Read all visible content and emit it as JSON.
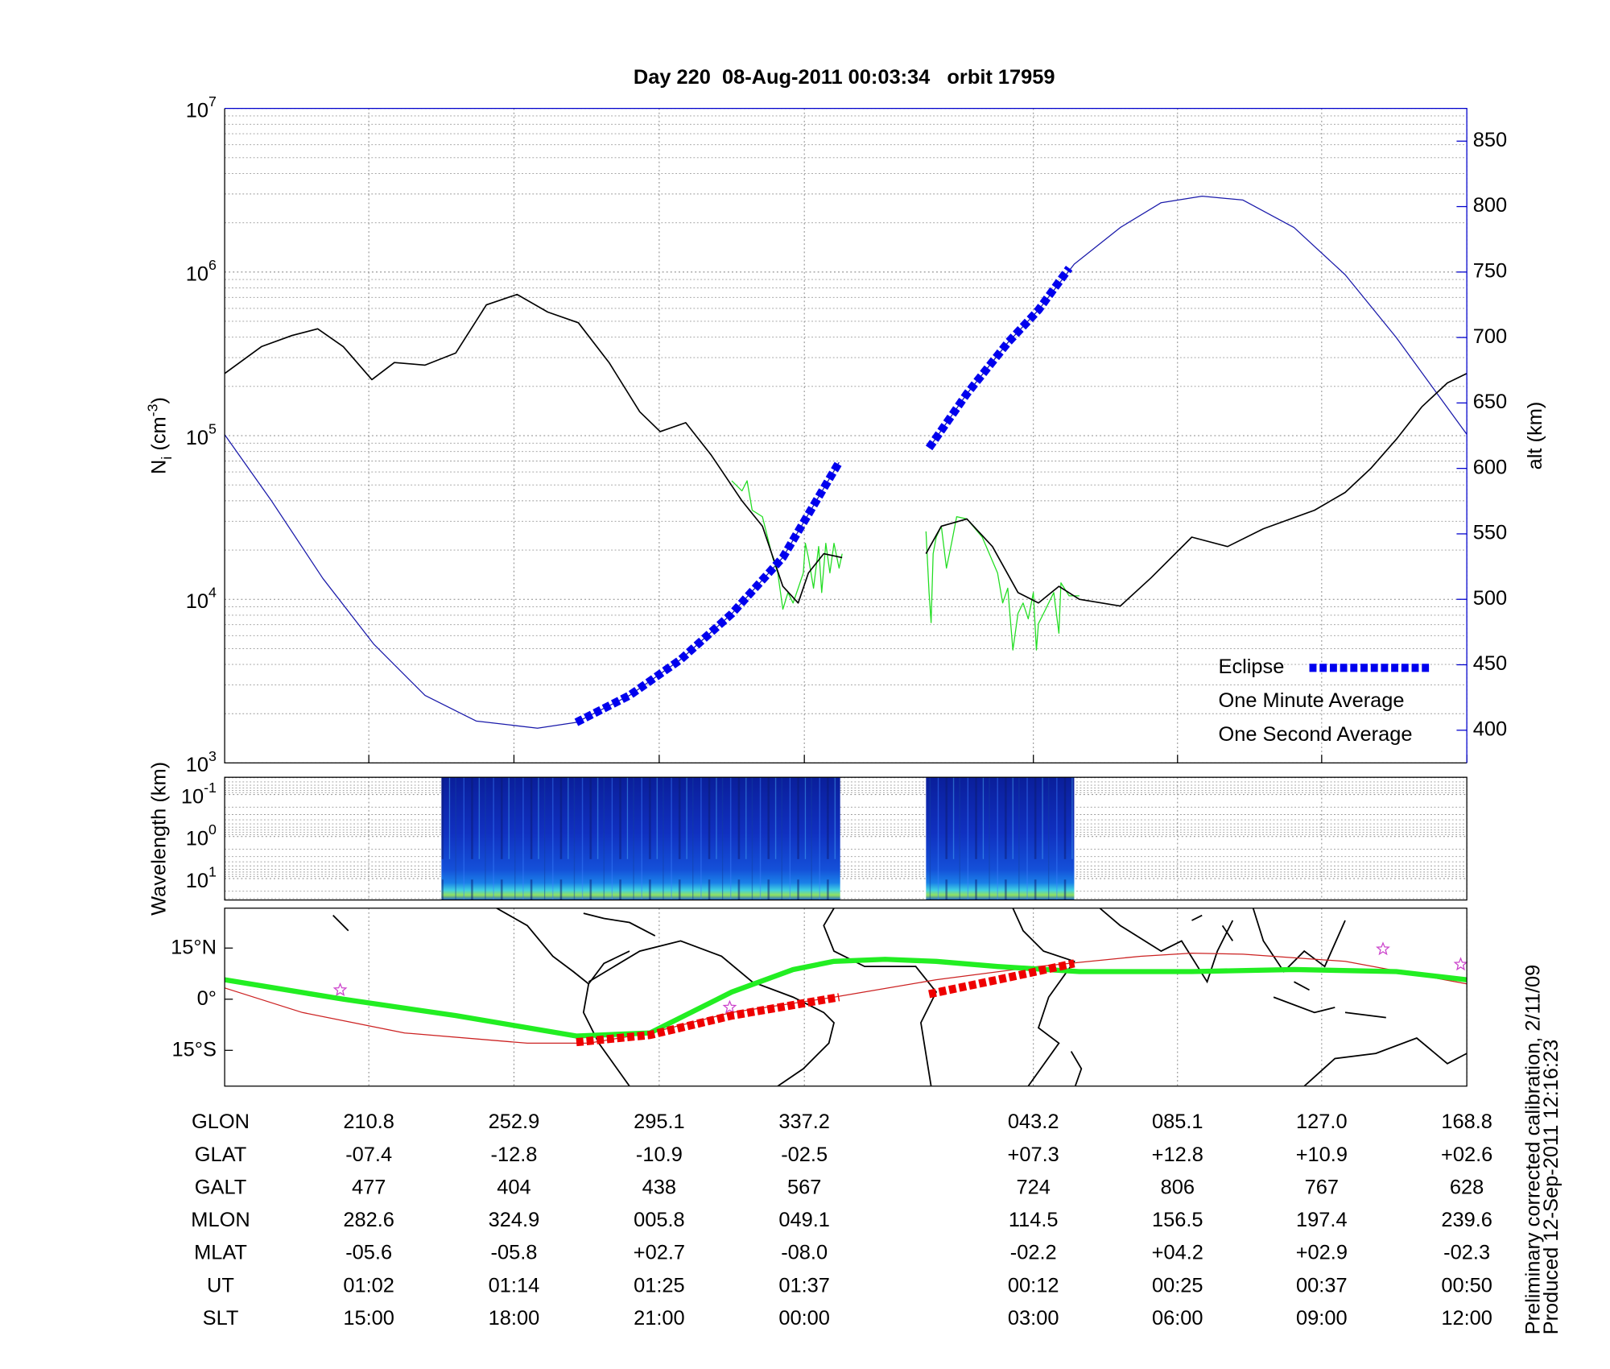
{
  "title": "Day 220  08-Aug-2011 00:03:34   orbit 17959",
  "chart_data": [
    {
      "type": "line",
      "ylabel_parts": [
        {
          "text": "N"
        },
        {
          "text": "i",
          "shift": "sub"
        },
        {
          "text": " (cm"
        },
        {
          "text": "-3",
          "shift": "super"
        },
        {
          "text": ")"
        }
      ],
      "y2label": "alt (km)",
      "y2color": "#0000cc",
      "xlim": [
        0,
        101.25
      ],
      "xticks": [
        11.75,
        23.58,
        35.42,
        47.25,
        65.92,
        77.67,
        89.42,
        101.25
      ],
      "log_y": true,
      "ylim": [
        1000,
        10000000
      ],
      "yticks": [
        {
          "value": 1000,
          "label": "10",
          "exponent": "3"
        },
        {
          "value": 10000,
          "label": "10",
          "exponent": "4"
        },
        {
          "value": 100000,
          "label": "10",
          "exponent": "5"
        },
        {
          "value": 1000000,
          "label": "10",
          "exponent": "6"
        },
        {
          "value": 10000000,
          "label": "10",
          "exponent": "7"
        }
      ],
      "y2lim": [
        375,
        875
      ],
      "y2ticks": [
        400,
        450,
        500,
        550,
        600,
        650,
        700,
        750,
        800,
        850
      ],
      "grid_x": true,
      "grid_y": true,
      "legend": "lower right",
      "series": [
        {
          "name": "Eclipse",
          "color": "#0000ee",
          "style": "dashed-thick",
          "axis": "y2",
          "legend_sample": true,
          "x": [
            28.67,
            33,
            37.17,
            41.33,
            45.5,
            50.08,
            53.75,
            57.42,
            60.5,
            63.83,
            66.33,
            68.83
          ],
          "values": [
            406,
            426.6,
            454,
            489,
            532,
            604.7,
            null,
            615.6,
            657,
            696,
            721,
            753
          ]
        },
        {
          "name": "One Minute Average",
          "color": "#000000",
          "style": "normal",
          "x": [
            0,
            3,
            5.5,
            7.58,
            9.67,
            12,
            13.83,
            16.33,
            18.83,
            21.33,
            23.83,
            26.33,
            28.83,
            31.33,
            33.83,
            35.5,
            37.58,
            39.67,
            42.17,
            43.83,
            45.5,
            46.75,
            47.58,
            48.83,
            50.33,
            53.75,
            57.17,
            58.42,
            60.5,
            62.58,
            64.67,
            66.33,
            68,
            69.67,
            73,
            75.5,
            78.83,
            81.75,
            84.67,
            88.83,
            91.33,
            93.42,
            95.5,
            97.58,
            99.67,
            101.25
          ],
          "values": [
            240000,
            350000,
            410000,
            450000,
            350000,
            220000,
            280000,
            270000,
            320000,
            630000,
            730000,
            570000,
            490000,
            280000,
            140000,
            106000,
            120000,
            76000,
            40000,
            28000,
            12000,
            9500,
            14500,
            19000,
            18000,
            null,
            19000,
            28000,
            31000,
            21000,
            11000,
            9500,
            12000,
            10000,
            9100,
            13500,
            24000,
            21000,
            27000,
            35000,
            45000,
            63000,
            95000,
            150000,
            210000,
            240000
          ]
        },
        {
          "name": "One Second Average",
          "color": "#22dd22",
          "style": "thin",
          "x": [
            41.33,
            42.17,
            42.58,
            43,
            43.83,
            44.67,
            45.08,
            45.5,
            45.92,
            46.33,
            46.75,
            47.17,
            47.33,
            47.58,
            48,
            48.42,
            48.67,
            49,
            49.33,
            49.67,
            50.08,
            50.33,
            53.75,
            57.17,
            57.42,
            57.58,
            57.75,
            58,
            58.42,
            58.83,
            59.25,
            59.67,
            60.5,
            61.75,
            63,
            63.42,
            63.83,
            64.25,
            64.67,
            65.08,
            65.5,
            65.92,
            66.17,
            66.33,
            66.75,
            67.58,
            68,
            68.17,
            68.83,
            69.67
          ],
          "values": [
            53000,
            46000,
            53000,
            35000,
            32000,
            18000,
            14500,
            8700,
            11000,
            9500,
            11700,
            14500,
            22000,
            18000,
            11700,
            21000,
            11000,
            22000,
            14500,
            22000,
            15500,
            19000,
            null,
            26000,
            11000,
            7200,
            19000,
            24000,
            28000,
            15500,
            22000,
            32000,
            31000,
            24000,
            14500,
            9500,
            11700,
            4900,
            8200,
            9500,
            7600,
            11000,
            4900,
            7100,
            8200,
            11000,
            6200,
            12600,
            10500,
            10500
          ]
        },
        {
          "color": "#1a1aaa",
          "style": "thin",
          "axis": "y2",
          "x": [
            0,
            3.83,
            8,
            12.17,
            16.33,
            20.5,
            25.5,
            28.67,
            33,
            37.17,
            41.33,
            45.5,
            50.08,
            53.75,
            57.42,
            60.5,
            63.83,
            66.33,
            69.25,
            73,
            76.33,
            79.67,
            83,
            87.17,
            91.33,
            95.5,
            101.25
          ],
          "values": [
            625.8,
            575,
            516,
            465.6,
            426.6,
            407,
            401.6,
            406,
            426.6,
            454,
            489,
            532,
            604.7,
            null,
            615.6,
            657,
            696,
            721,
            756,
            784,
            803,
            808,
            805,
            784,
            748,
            700,
            626
          ]
        }
      ]
    },
    {
      "type": "spectrogram",
      "ylabel": "Wavelength (km)",
      "xlim": [
        0,
        101.25
      ],
      "xticks": [
        11.75,
        23.58,
        35.42,
        47.25,
        65.92,
        77.67,
        89.42,
        101.25
      ],
      "log_y": true,
      "invert_y": true,
      "ylim": [
        0.0389,
        32.4
      ],
      "yticks": [
        {
          "value": 0.1,
          "label": "10",
          "exponent": "-1"
        },
        {
          "value": 1,
          "label": "10",
          "exponent": "0"
        },
        {
          "value": 10,
          "label": "10",
          "exponent": "1"
        }
      ],
      "grid_x": true,
      "grid_y": true,
      "segments": [
        {
          "x": [
            17.67,
            50.17
          ]
        },
        {
          "x": [
            57.17,
            69.25
          ]
        }
      ]
    },
    {
      "type": "map-track",
      "xlim": [
        0,
        101.25
      ],
      "xticks": [
        11.75,
        23.58,
        35.42,
        47.25,
        65.92,
        77.67,
        89.42,
        101.25
      ],
      "ylim": [
        -25.5,
        26.7
      ],
      "yticks": [
        {
          "value": 15,
          "label": "15°N"
        },
        {
          "value": 0,
          "label": "0°"
        },
        {
          "value": -15,
          "label": "15°S"
        }
      ],
      "grid_x": true,
      "grid_y": false,
      "series": [
        {
          "color": "#ee0000",
          "style": "dashed-thick",
          "x": [
            28.67,
            34.67,
            41.33,
            50.08,
            53.75,
            57.42,
            63,
            69.25
          ],
          "values": [
            -12.6,
            -10.5,
            -4.8,
            0.6,
            null,
            1.5,
            5.7,
            10.5
          ]
        },
        {
          "color": "#22ee22",
          "style": "thick",
          "x": [
            0,
            9.67,
            18.83,
            28.67,
            34.67,
            41.33,
            46.33,
            49.67,
            53.83,
            58,
            63,
            69.67,
            78.83,
            87.17,
            95.5,
            101.25
          ],
          "values": [
            5.7,
            0,
            -4.8,
            -10.8,
            -9.9,
            2.1,
            8.7,
            11.1,
            11.7,
            11.1,
            9.6,
            8.1,
            8.1,
            8.7,
            8.1,
            5.7
          ]
        },
        {
          "color": "#cc2222",
          "style": "thin",
          "x": [
            0,
            6.33,
            14.67,
            24.67,
            29.67,
            34.67,
            41.33,
            49.67,
            58,
            66.33,
            74.67,
            78.83,
            83,
            91.33,
            101.25
          ],
          "values": [
            3.3,
            -3.9,
            -9.9,
            -12.9,
            -12.9,
            -9.9,
            -3.9,
            0.6,
            5.7,
            9.6,
            12.6,
            13.5,
            13.2,
            11.1,
            4.5
          ]
        },
        {
          "color": "#cc44cc",
          "style": "star",
          "x": [
            9.42,
            41.17,
            94.42,
            100.75
          ],
          "values": [
            2.7,
            -2.4,
            14.7,
            10.2
          ]
        }
      ]
    }
  ],
  "table": {
    "rows": [
      {
        "label": "GLON",
        "cells": [
          "210.8",
          "252.9",
          "295.1",
          "337.2",
          "043.2",
          "085.1",
          "127.0",
          "168.8"
        ]
      },
      {
        "label": "GLAT",
        "cells": [
          "-07.4",
          "-12.8",
          "-10.9",
          "-02.5",
          "+07.3",
          "+12.8",
          "+10.9",
          "+02.6"
        ]
      },
      {
        "label": "GALT",
        "cells": [
          "477",
          "404",
          "438",
          "567",
          "724",
          "806",
          "767",
          "628"
        ]
      },
      {
        "label": "MLON",
        "cells": [
          "282.6",
          "324.9",
          "005.8",
          "049.1",
          "114.5",
          "156.5",
          "197.4",
          "239.6"
        ]
      },
      {
        "label": "MLAT",
        "cells": [
          "-05.6",
          "-05.8",
          "+02.7",
          "-08.0",
          "-02.2",
          "+04.2",
          "+02.9",
          "-02.3"
        ]
      },
      {
        "label": "UT",
        "cells": [
          "01:02",
          "01:14",
          "01:25",
          "01:37",
          "00:12",
          "00:25",
          "00:37",
          "00:50"
        ]
      },
      {
        "label": "SLT",
        "cells": [
          "15:00",
          "18:00",
          "21:00",
          "00:00",
          "03:00",
          "06:00",
          "09:00",
          "12:00"
        ]
      }
    ]
  },
  "footer": [
    "Preliminary corrected calibration, 2/11/09",
    "Produced 12-Sep-2011 12:16:23"
  ]
}
